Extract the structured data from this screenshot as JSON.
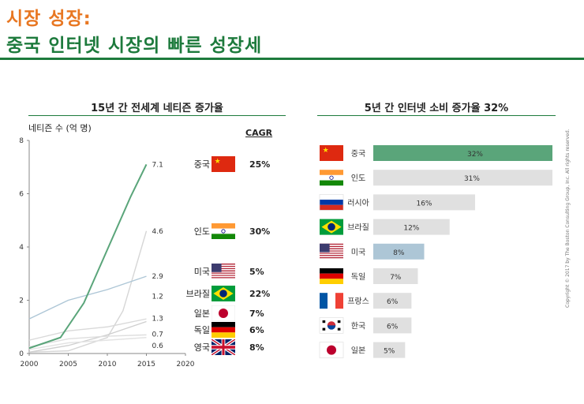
{
  "header": {
    "title_line1": "시장 성장:",
    "title_line2": "중국 인터넷 시장의 빠른 성장세"
  },
  "left_panel": {
    "title": "15년 간 전세계 네티즌 증가율",
    "y_unit_label": "네티즌 수 (억 명)",
    "cagr_header": "CAGR",
    "countries": [
      {
        "name": "중국",
        "cagr": "25%",
        "flag": "china-flag"
      },
      {
        "name": "인도",
        "cagr": "30%",
        "flag": "india-flag"
      },
      {
        "name": "미국",
        "cagr": "5%",
        "flag": "usa-flag"
      },
      {
        "name": "브라질",
        "cagr": "22%",
        "flag": "brazil-flag"
      },
      {
        "name": "일본",
        "cagr": "7%",
        "flag": "japan-flag"
      },
      {
        "name": "독일",
        "cagr": "6%",
        "flag": "germany-flag"
      },
      {
        "name": "영국",
        "cagr": "8%",
        "flag": "uk-flag"
      }
    ]
  },
  "right_panel": {
    "title": "5년 간 인터넷 소비 증가율 32%"
  },
  "copyright": "Copyright © 2017 by The Boston Consulting Group, Inc. All rights reserved.",
  "chart_data": [
    {
      "type": "line",
      "title": "15년 간 전세계 네티즌 증가율",
      "ylabel": "네티즌 수 (억 명)",
      "xlim": [
        2000,
        2020
      ],
      "ylim": [
        0,
        8
      ],
      "x_ticks": [
        2000,
        2005,
        2010,
        2015,
        2020
      ],
      "y_ticks": [
        0,
        2,
        4,
        6,
        8
      ],
      "grid": false,
      "series": [
        {
          "name": "중국",
          "color": "#5aa57a",
          "x": [
            2000,
            2004,
            2007,
            2010,
            2013,
            2015
          ],
          "y": [
            0.2,
            0.6,
            1.9,
            3.9,
            5.9,
            7.1
          ],
          "end_label": "7.1"
        },
        {
          "name": "인도",
          "color": "#d6d6d6",
          "x": [
            2000,
            2005,
            2010,
            2012,
            2015
          ],
          "y": [
            0.05,
            0.1,
            0.6,
            1.6,
            4.6
          ],
          "end_label": "4.6"
        },
        {
          "name": "미국",
          "color": "#adc6d6",
          "x": [
            2000,
            2005,
            2010,
            2015
          ],
          "y": [
            1.3,
            2.0,
            2.4,
            2.9
          ],
          "end_label": "2.9"
        },
        {
          "name": "브라질",
          "color": "#cfcfcf",
          "x": [
            2000,
            2005,
            2010,
            2015
          ],
          "y": [
            0.05,
            0.3,
            0.7,
            1.2
          ],
          "end_label": "1.2"
        },
        {
          "name": "일본",
          "color": "#d9d9d9",
          "x": [
            2000,
            2005,
            2010,
            2015
          ],
          "y": [
            0.5,
            0.85,
            1.0,
            1.3
          ],
          "end_label": "1.3"
        },
        {
          "name": "독일",
          "color": "#dedede",
          "x": [
            2000,
            2005,
            2010,
            2015
          ],
          "y": [
            0.25,
            0.55,
            0.65,
            0.7
          ],
          "end_label": "0.7"
        },
        {
          "name": "영국",
          "color": "#e3e3e3",
          "x": [
            2000,
            2005,
            2010,
            2015
          ],
          "y": [
            0.15,
            0.4,
            0.5,
            0.6
          ],
          "end_label": "0.6"
        }
      ]
    },
    {
      "type": "bar",
      "title": "5년 간 인터넷 소비 증가율 32%",
      "orientation": "horizontal",
      "categories": [
        "중국",
        "인도",
        "러시아",
        "브라질",
        "미국",
        "독일",
        "프랑스",
        "한국",
        "일본"
      ],
      "flags": [
        "china-flag",
        "india-flag",
        "russia-flag",
        "brazil-flag",
        "usa-flag",
        "germany-flag",
        "france-flag",
        "korea-flag",
        "japan-flag"
      ],
      "values": [
        32,
        31,
        16,
        12,
        8,
        7,
        6,
        6,
        5
      ],
      "value_labels": [
        "32%",
        "31%",
        "16%",
        "12%",
        "8%",
        "7%",
        "6%",
        "6%",
        "5%"
      ],
      "colors": [
        "#5aa57a",
        "#e0e0e0",
        "#e0e0e0",
        "#e0e0e0",
        "#adc6d6",
        "#e0e0e0",
        "#e0e0e0",
        "#e0e0e0",
        "#e0e0e0"
      ],
      "xlim": [
        0,
        32
      ]
    }
  ]
}
